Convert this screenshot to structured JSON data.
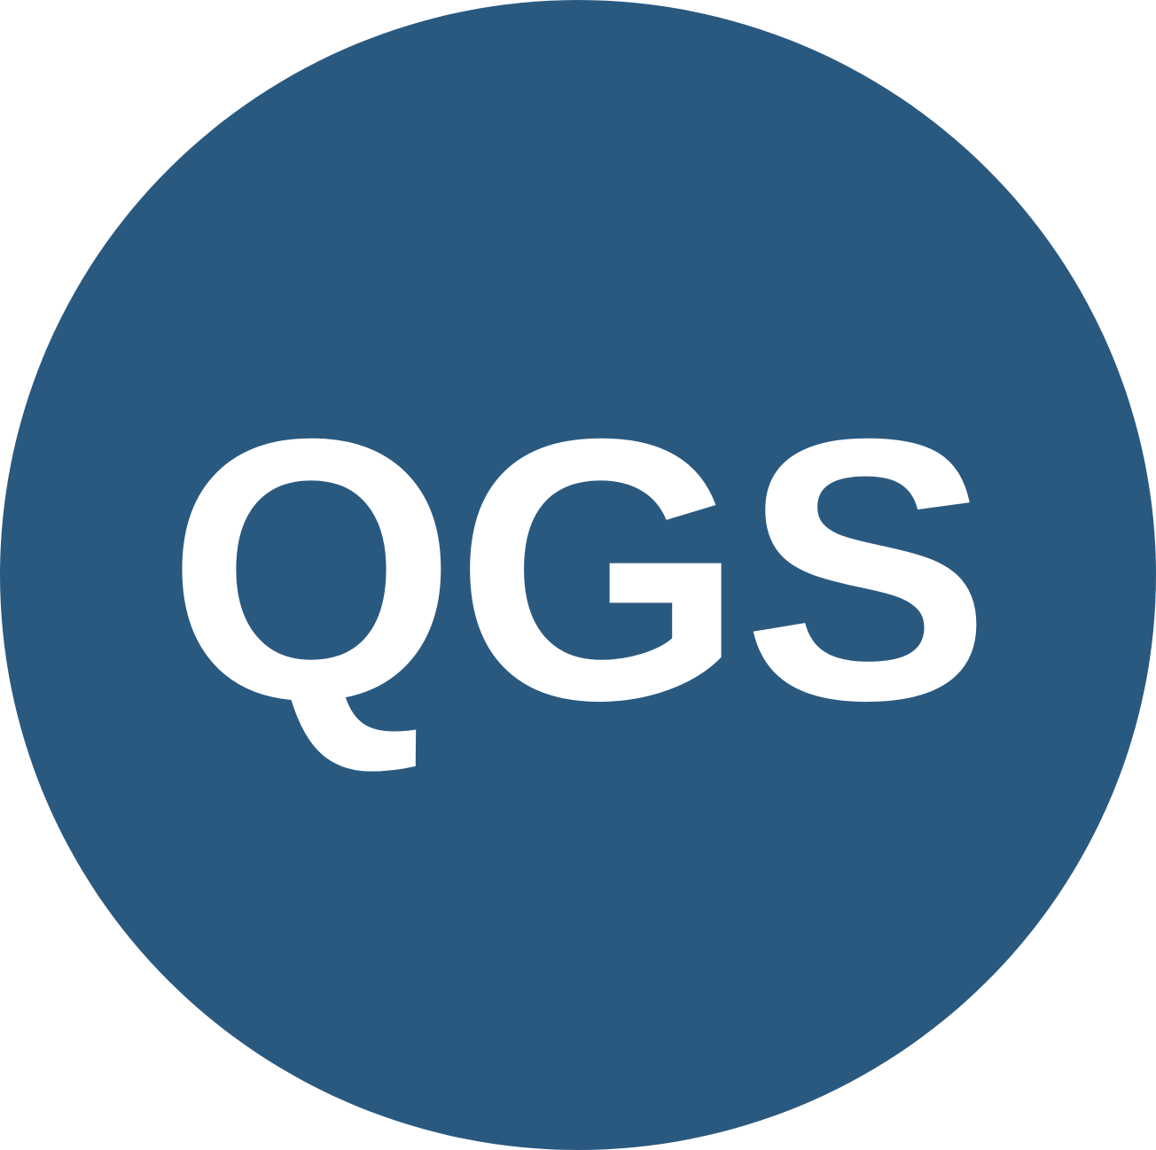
{
  "logo": {
    "text": "QGS",
    "background_color": "#2a5980",
    "text_color": "#ffffff"
  }
}
